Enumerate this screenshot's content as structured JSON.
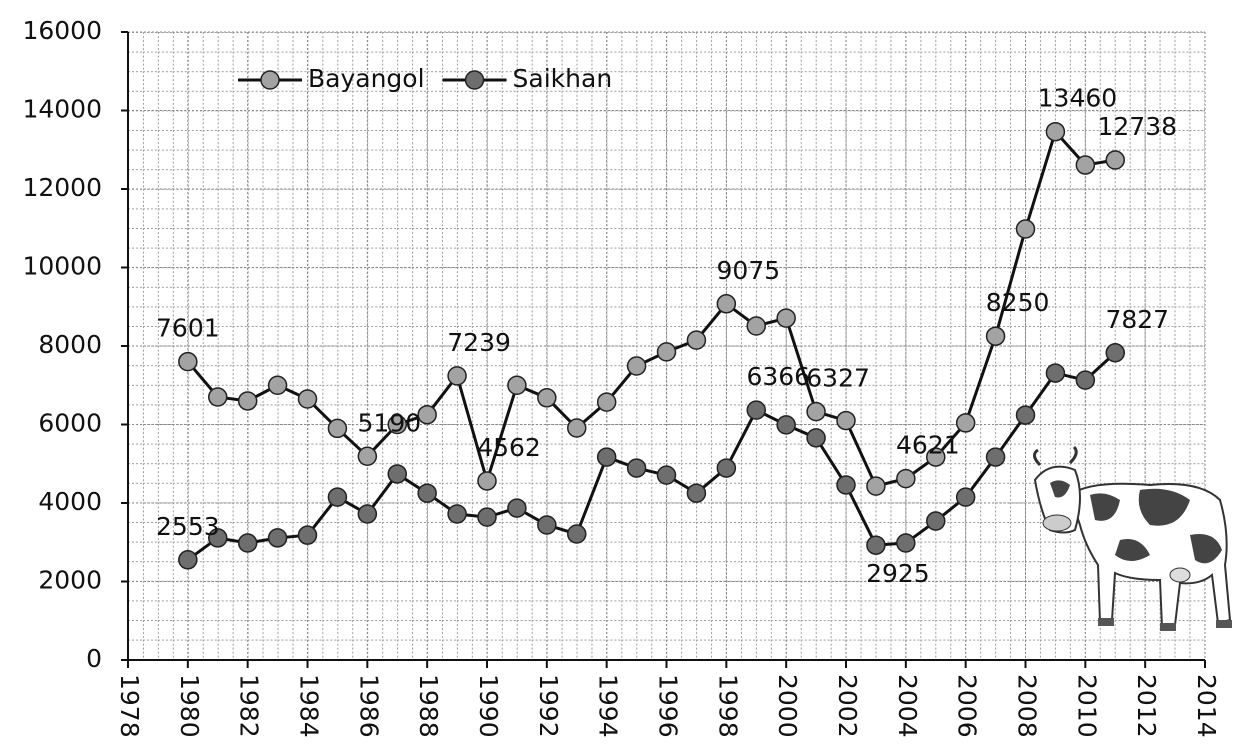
{
  "chart_data": {
    "type": "line",
    "x": [
      1980,
      1981,
      1982,
      1983,
      1984,
      1985,
      1986,
      1987,
      1988,
      1989,
      1990,
      1991,
      1992,
      1993,
      1994,
      1995,
      1996,
      1997,
      1998,
      1999,
      2000,
      2001,
      2002,
      2003,
      2004,
      2005,
      2006,
      2007,
      2008,
      2009,
      2010,
      2011
    ],
    "series": [
      {
        "name": "Bayangol",
        "color": "#a3a3a3",
        "values": [
          7601,
          6700,
          6600,
          7000,
          6650,
          5900,
          5190,
          6000,
          6250,
          7239,
          4562,
          7000,
          6680,
          5910,
          6570,
          7490,
          7850,
          8150,
          9075,
          8510,
          8710,
          6327,
          6100,
          4430,
          4621,
          5170,
          6040,
          8250,
          10980,
          13460,
          12610,
          12738
        ],
        "value_labels": [
          "7601",
          null,
          null,
          null,
          null,
          null,
          "5190",
          null,
          null,
          "7239",
          "4562",
          null,
          null,
          null,
          null,
          null,
          null,
          null,
          "9075",
          null,
          null,
          "6327",
          null,
          null,
          "4621",
          null,
          null,
          "8250",
          null,
          "13460",
          null,
          "12738"
        ]
      },
      {
        "name": "Saikhan",
        "color": "#6e6e6e",
        "values": [
          2553,
          3110,
          2980,
          3110,
          3180,
          4150,
          3720,
          4740,
          4250,
          3720,
          3640,
          3870,
          3440,
          3210,
          5170,
          4890,
          4710,
          4250,
          4890,
          6366,
          5990,
          5660,
          4460,
          2925,
          2980,
          3540,
          4150,
          5170,
          6240,
          7310,
          7130,
          7827
        ],
        "value_labels": [
          "2553",
          null,
          null,
          null,
          null,
          null,
          null,
          null,
          null,
          null,
          null,
          null,
          null,
          null,
          null,
          null,
          null,
          null,
          null,
          "6366",
          null,
          null,
          null,
          "2925",
          null,
          null,
          null,
          null,
          null,
          null,
          null,
          "7827"
        ]
      }
    ],
    "xlim": [
      1978,
      2014
    ],
    "xticks": [
      1978,
      1980,
      1982,
      1984,
      1986,
      1988,
      1990,
      1992,
      1994,
      1996,
      1998,
      2000,
      2002,
      2004,
      2006,
      2008,
      2010,
      2012,
      2014
    ],
    "ylim": [
      0,
      16000
    ],
    "yticks": [
      0,
      2000,
      4000,
      6000,
      8000,
      10000,
      12000,
      14000,
      16000
    ],
    "grid": true,
    "legend": "top-left",
    "line_color": "#111111"
  }
}
